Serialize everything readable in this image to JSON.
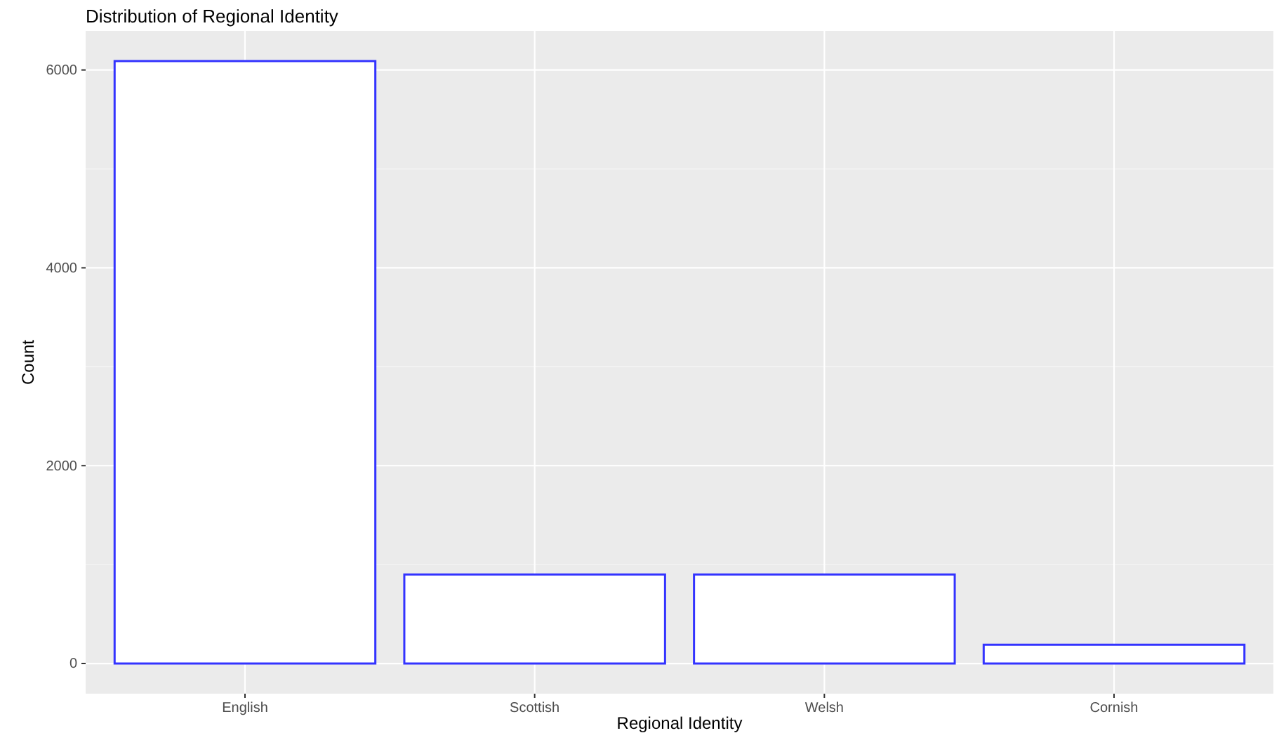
{
  "chart_data": {
    "type": "bar",
    "title": "Distribution of Regional Identity",
    "xlabel": "Regional Identity",
    "ylabel": "Count",
    "categories": [
      "English",
      "Scottish",
      "Welsh",
      "Cornish"
    ],
    "values": [
      6090,
      900,
      900,
      190
    ],
    "color": "#3333ff",
    "ylim": [
      -305,
      6395
    ],
    "yticks": [
      0,
      2000,
      4000,
      6000
    ],
    "grid": true
  }
}
